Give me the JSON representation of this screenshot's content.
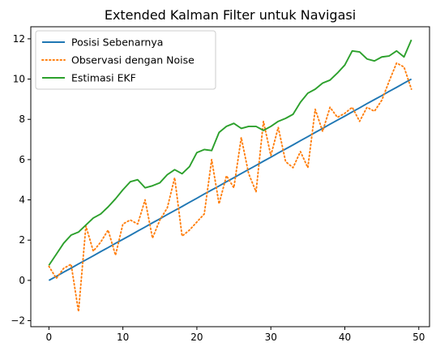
{
  "chart_data": {
    "type": "line",
    "title": "Extended Kalman Filter untuk Navigasi",
    "xlabel": "",
    "ylabel": "",
    "xlim": [
      -2.45,
      51.45
    ],
    "ylim": [
      -2.3,
      12.6
    ],
    "xticks": [
      0,
      10,
      20,
      30,
      40,
      50
    ],
    "yticks": [
      -2,
      0,
      2,
      4,
      6,
      8,
      10,
      12
    ],
    "grid": false,
    "legend_position": "top-left",
    "x": [
      0,
      1,
      2,
      3,
      4,
      5,
      6,
      7,
      8,
      9,
      10,
      11,
      12,
      13,
      14,
      15,
      16,
      17,
      18,
      19,
      20,
      21,
      22,
      23,
      24,
      25,
      26,
      27,
      28,
      29,
      30,
      31,
      32,
      33,
      34,
      35,
      36,
      37,
      38,
      39,
      40,
      41,
      42,
      43,
      44,
      45,
      46,
      47,
      48,
      49
    ],
    "series": [
      {
        "name": "Posisi Sebenarnya",
        "color": "#1f77b4",
        "style": "solid",
        "values": [
          0.0,
          0.2,
          0.41,
          0.61,
          0.82,
          1.02,
          1.22,
          1.43,
          1.63,
          1.84,
          2.04,
          2.24,
          2.45,
          2.65,
          2.86,
          3.06,
          3.27,
          3.47,
          3.67,
          3.88,
          4.08,
          4.29,
          4.49,
          4.69,
          4.9,
          5.1,
          5.31,
          5.51,
          5.71,
          5.92,
          6.12,
          6.33,
          6.53,
          6.73,
          6.94,
          7.14,
          7.35,
          7.55,
          7.76,
          7.96,
          8.16,
          8.37,
          8.57,
          8.78,
          8.98,
          9.18,
          9.39,
          9.59,
          9.8,
          10.0
        ]
      },
      {
        "name": "Observasi dengan Noise",
        "color": "#ff7f0e",
        "style": "dotted",
        "values": [
          0.7,
          0.1,
          0.6,
          0.8,
          -1.55,
          2.7,
          1.45,
          1.9,
          2.5,
          1.25,
          2.8,
          3.0,
          2.8,
          4.0,
          2.1,
          3.0,
          3.6,
          5.1,
          2.2,
          2.5,
          2.9,
          3.3,
          6.0,
          3.8,
          5.2,
          4.6,
          7.1,
          5.3,
          4.4,
          7.9,
          6.2,
          7.6,
          5.9,
          5.6,
          6.4,
          5.6,
          8.5,
          7.4,
          8.6,
          8.1,
          8.3,
          8.6,
          7.9,
          8.6,
          8.4,
          8.95,
          9.9,
          10.8,
          10.6,
          9.5
        ]
      },
      {
        "name": "Estimasi EKF",
        "color": "#2ca02c",
        "style": "solid",
        "values": [
          0.75,
          1.3,
          1.85,
          2.25,
          2.4,
          2.75,
          3.1,
          3.3,
          3.65,
          4.05,
          4.5,
          4.9,
          5.0,
          4.6,
          4.7,
          4.85,
          5.25,
          5.5,
          5.3,
          5.65,
          6.35,
          6.5,
          6.45,
          7.35,
          7.65,
          7.8,
          7.55,
          7.65,
          7.65,
          7.45,
          7.65,
          7.9,
          8.05,
          8.25,
          8.85,
          9.3,
          9.5,
          9.8,
          9.95,
          10.3,
          10.7,
          11.4,
          11.35,
          11.0,
          10.9,
          11.1,
          11.15,
          11.4,
          11.1,
          11.95
        ]
      }
    ]
  }
}
